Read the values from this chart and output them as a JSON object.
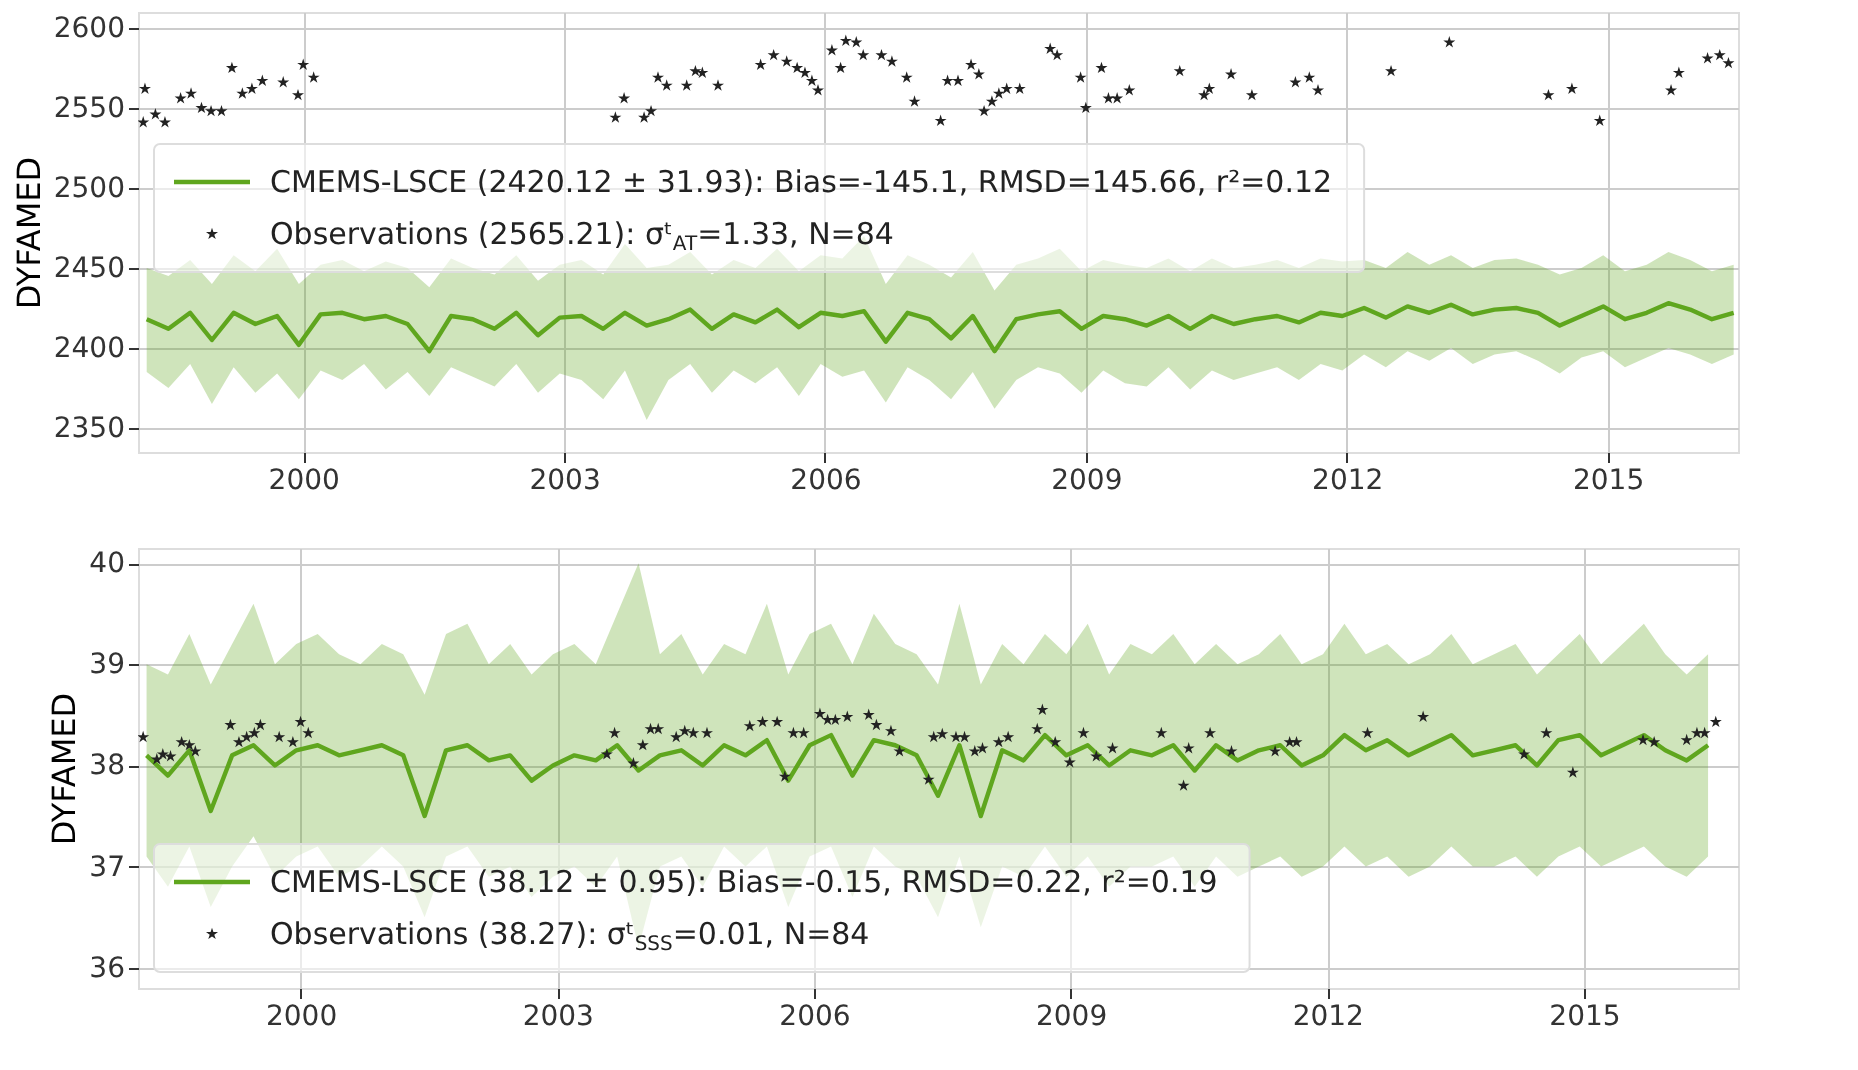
{
  "chart_data": [
    {
      "type": "line",
      "ylabel": "DYFAMED",
      "xlim": [
        1998.1,
        2016.5
      ],
      "xticks": [
        2000,
        2003,
        2006,
        2009,
        2012,
        2015
      ],
      "ylim": [
        2335,
        2610
      ],
      "yticks": [
        2350,
        2400,
        2450,
        2500,
        2550,
        2600
      ],
      "grid": true,
      "legend": "left",
      "series": [
        {
          "name": "CMEMS-LSCE (2420.12 ± 31.93): Bias=-145.1, RMSD=145.66, r²=0.12",
          "type": "line",
          "color": "#5fa61e",
          "line_style": "solid",
          "x": [
            1998.2,
            1998.45,
            1998.7,
            1998.95,
            1999.2,
            1999.45,
            1999.7,
            1999.95,
            2000.2,
            2000.45,
            2000.7,
            2000.95,
            2001.2,
            2001.45,
            2001.7,
            2001.95,
            2002.2,
            2002.45,
            2002.7,
            2002.95,
            2003.2,
            2003.45,
            2003.7,
            2003.95,
            2004.2,
            2004.45,
            2004.7,
            2004.95,
            2005.2,
            2005.45,
            2005.7,
            2005.95,
            2006.2,
            2006.45,
            2006.7,
            2006.95,
            2007.2,
            2007.45,
            2007.7,
            2007.95,
            2008.2,
            2008.45,
            2008.7,
            2008.95,
            2009.2,
            2009.45,
            2009.7,
            2009.95,
            2010.2,
            2010.45,
            2010.7,
            2010.95,
            2011.2,
            2011.45,
            2011.7,
            2011.95,
            2012.2,
            2012.45,
            2012.7,
            2012.95,
            2013.2,
            2013.45,
            2013.7,
            2013.95,
            2014.2,
            2014.45,
            2014.7,
            2014.95,
            2015.2,
            2015.45,
            2015.7,
            2015.95,
            2016.2,
            2016.45
          ],
          "values": [
            2418,
            2412,
            2422,
            2405,
            2422,
            2415,
            2420,
            2402,
            2421,
            2422,
            2418,
            2420,
            2415,
            2398,
            2420,
            2418,
            2412,
            2422,
            2408,
            2419,
            2420,
            2412,
            2422,
            2414,
            2418,
            2424,
            2412,
            2421,
            2416,
            2424,
            2413,
            2422,
            2420,
            2423,
            2404,
            2422,
            2418,
            2406,
            2420,
            2398,
            2418,
            2421,
            2423,
            2412,
            2420,
            2418,
            2414,
            2420,
            2412,
            2420,
            2415,
            2418,
            2420,
            2416,
            2422,
            2420,
            2425,
            2419,
            2426,
            2422,
            2427,
            2421,
            2424,
            2425,
            2422,
            2414,
            2420,
            2426,
            2418,
            2422,
            2428,
            2424,
            2418,
            2422
          ],
          "lower": [
            2385,
            2375,
            2390,
            2365,
            2388,
            2372,
            2384,
            2368,
            2386,
            2380,
            2390,
            2374,
            2385,
            2370,
            2388,
            2382,
            2376,
            2390,
            2372,
            2384,
            2380,
            2368,
            2386,
            2355,
            2380,
            2390,
            2372,
            2386,
            2378,
            2388,
            2370,
            2390,
            2382,
            2386,
            2366,
            2388,
            2380,
            2368,
            2385,
            2362,
            2380,
            2388,
            2384,
            2372,
            2386,
            2378,
            2376,
            2388,
            2374,
            2386,
            2380,
            2384,
            2388,
            2380,
            2390,
            2386,
            2396,
            2388,
            2398,
            2392,
            2400,
            2390,
            2396,
            2398,
            2392,
            2384,
            2394,
            2398,
            2388,
            2394,
            2400,
            2396,
            2390,
            2396
          ],
          "upper": [
            2450,
            2445,
            2455,
            2440,
            2458,
            2448,
            2462,
            2440,
            2452,
            2455,
            2448,
            2454,
            2450,
            2438,
            2456,
            2450,
            2446,
            2458,
            2442,
            2452,
            2455,
            2446,
            2465,
            2450,
            2452,
            2460,
            2446,
            2455,
            2450,
            2462,
            2448,
            2458,
            2456,
            2470,
            2440,
            2458,
            2452,
            2444,
            2460,
            2436,
            2452,
            2456,
            2462,
            2448,
            2455,
            2452,
            2450,
            2456,
            2448,
            2456,
            2450,
            2452,
            2455,
            2450,
            2456,
            2454,
            2455,
            2450,
            2460,
            2452,
            2458,
            2450,
            2455,
            2456,
            2452,
            2446,
            2450,
            2458,
            2448,
            2452,
            2460,
            2455,
            2448,
            2452
          ]
        },
        {
          "name": "Observations (2565.21): σᵗ$_{AT}$=1.33, N=84",
          "type": "scatter",
          "color": "#222222",
          "marker": "star",
          "x": [
            1998.18,
            1998.16,
            1998.3,
            1998.41,
            1998.59,
            1998.71,
            1998.83,
            1998.94,
            1999.06,
            1999.18,
            1999.3,
            1999.41,
            1999.53,
            1999.77,
            1999.94,
            2000.0,
            2000.12,
            2003.59,
            2003.69,
            2003.92,
            2004.0,
            2004.08,
            2004.18,
            2004.41,
            2004.51,
            2004.59,
            2004.77,
            2005.26,
            2005.41,
            2005.56,
            2005.68,
            2005.77,
            2005.85,
            2005.92,
            2006.08,
            2006.18,
            2006.24,
            2006.36,
            2006.44,
            2006.65,
            2006.77,
            2006.94,
            2007.03,
            2007.33,
            2007.41,
            2007.53,
            2007.68,
            2007.77,
            2007.83,
            2007.92,
            2008.0,
            2008.09,
            2008.24,
            2008.59,
            2008.67,
            2008.94,
            2009.0,
            2009.18,
            2009.26,
            2009.36,
            2009.5,
            2010.08,
            2010.36,
            2010.42,
            2010.67,
            2010.91,
            2011.41,
            2011.57,
            2011.67,
            2012.51,
            2013.18,
            2014.32,
            2014.59,
            2014.91,
            2015.73,
            2015.82,
            2016.15,
            2016.29,
            2016.39
          ],
          "values": [
            2562,
            2541,
            2546,
            2541,
            2556,
            2559,
            2550,
            2548,
            2548,
            2575,
            2559,
            2562,
            2567,
            2566,
            2558,
            2577,
            2569,
            2544,
            2556,
            2544,
            2548,
            2569,
            2564,
            2564,
            2573,
            2572,
            2564,
            2577,
            2583,
            2579,
            2575,
            2572,
            2567,
            2561,
            2586,
            2575,
            2592,
            2591,
            2583,
            2583,
            2579,
            2569,
            2554,
            2542,
            2567,
            2567,
            2577,
            2571,
            2548,
            2554,
            2559,
            2562,
            2562,
            2587,
            2583,
            2569,
            2550,
            2575,
            2556,
            2556,
            2561,
            2573,
            2558,
            2562,
            2571,
            2558,
            2566,
            2569,
            2561,
            2573,
            2591,
            2558,
            2562,
            2542,
            2561,
            2572,
            2581,
            2583,
            2578
          ]
        }
      ]
    },
    {
      "type": "line",
      "ylabel": "DYFAMED",
      "xlim": [
        1998.1,
        2016.8
      ],
      "xticks": [
        2000,
        2003,
        2006,
        2009,
        2012,
        2015
      ],
      "ylim": [
        35.8,
        40.15
      ],
      "yticks": [
        36,
        37,
        38,
        39,
        40
      ],
      "grid": true,
      "legend": "bottom left",
      "series": [
        {
          "name": "CMEMS-LSCE (38.12 ± 0.95): Bias=-0.15, RMSD=0.22, r²=0.19",
          "type": "line",
          "color": "#5fa61e",
          "line_style": "solid",
          "x": [
            1998.2,
            1998.45,
            1998.7,
            1998.95,
            1999.2,
            1999.45,
            1999.7,
            1999.95,
            2000.2,
            2000.45,
            2000.7,
            2000.95,
            2001.2,
            2001.45,
            2001.7,
            2001.95,
            2002.2,
            2002.45,
            2002.7,
            2002.95,
            2003.2,
            2003.45,
            2003.7,
            2003.95,
            2004.2,
            2004.45,
            2004.7,
            2004.95,
            2005.2,
            2005.45,
            2005.7,
            2005.95,
            2006.2,
            2006.45,
            2006.7,
            2006.95,
            2007.2,
            2007.45,
            2007.7,
            2007.95,
            2008.2,
            2008.45,
            2008.7,
            2008.95,
            2009.2,
            2009.45,
            2009.7,
            2009.95,
            2010.2,
            2010.45,
            2010.7,
            2010.95,
            2011.2,
            2011.45,
            2011.7,
            2011.95,
            2012.2,
            2012.45,
            2012.7,
            2012.95,
            2013.2,
            2013.45,
            2013.7,
            2013.95,
            2014.2,
            2014.45,
            2014.7,
            2014.95,
            2015.2,
            2015.45,
            2015.7,
            2015.95,
            2016.2,
            2016.45
          ],
          "values": [
            38.1,
            37.9,
            38.15,
            37.55,
            38.1,
            38.2,
            38.0,
            38.15,
            38.2,
            38.1,
            38.15,
            38.2,
            38.1,
            37.5,
            38.15,
            38.2,
            38.05,
            38.1,
            37.85,
            38.0,
            38.1,
            38.05,
            38.2,
            37.95,
            38.1,
            38.15,
            38.0,
            38.2,
            38.1,
            38.25,
            37.85,
            38.2,
            38.3,
            37.9,
            38.25,
            38.2,
            38.1,
            37.7,
            38.2,
            37.5,
            38.15,
            38.05,
            38.3,
            38.1,
            38.2,
            38.0,
            38.15,
            38.1,
            38.2,
            37.95,
            38.2,
            38.05,
            38.15,
            38.2,
            38.0,
            38.1,
            38.3,
            38.15,
            38.25,
            38.1,
            38.2,
            38.3,
            38.1,
            38.15,
            38.2,
            38.0,
            38.25,
            38.3,
            38.1,
            38.2,
            38.3,
            38.15,
            38.05,
            38.2
          ],
          "lower": [
            37.1,
            36.8,
            37.2,
            36.6,
            37.0,
            37.3,
            36.9,
            37.1,
            37.2,
            36.9,
            37.0,
            37.2,
            37.0,
            36.5,
            37.1,
            37.2,
            36.9,
            37.0,
            36.7,
            36.9,
            37.0,
            36.8,
            37.1,
            36.2,
            37.0,
            37.1,
            36.8,
            37.2,
            37.0,
            37.2,
            36.6,
            37.1,
            37.2,
            36.7,
            37.2,
            37.0,
            36.9,
            36.5,
            37.1,
            36.4,
            37.0,
            36.9,
            37.2,
            36.9,
            37.1,
            36.8,
            37.0,
            37.0,
            37.1,
            36.8,
            37.1,
            36.9,
            37.0,
            37.1,
            36.9,
            37.0,
            37.2,
            37.0,
            37.1,
            36.9,
            37.0,
            37.2,
            37.0,
            37.0,
            37.1,
            36.9,
            37.1,
            37.2,
            37.0,
            37.1,
            37.2,
            37.0,
            36.9,
            37.1
          ],
          "upper": [
            39.0,
            38.9,
            39.3,
            38.8,
            39.2,
            39.6,
            39.0,
            39.2,
            39.3,
            39.1,
            39.0,
            39.2,
            39.1,
            38.7,
            39.3,
            39.4,
            39.0,
            39.2,
            38.9,
            39.1,
            39.2,
            39.0,
            39.5,
            40.0,
            39.1,
            39.3,
            38.9,
            39.2,
            39.1,
            39.6,
            38.9,
            39.3,
            39.4,
            39.0,
            39.5,
            39.2,
            39.1,
            38.8,
            39.6,
            38.8,
            39.2,
            39.0,
            39.3,
            39.1,
            39.4,
            38.9,
            39.2,
            39.1,
            39.3,
            39.0,
            39.2,
            39.0,
            39.1,
            39.3,
            39.0,
            39.1,
            39.4,
            39.1,
            39.2,
            39.0,
            39.1,
            39.3,
            39.0,
            39.1,
            39.2,
            38.9,
            39.1,
            39.3,
            39.0,
            39.2,
            39.4,
            39.1,
            38.9,
            39.1
          ]
        },
        {
          "name": "Observations (38.27): σᵗ$_{SSS}$=0.01, N=84",
          "type": "scatter",
          "color": "#222222",
          "marker": "star",
          "x": [
            1998.16,
            1998.32,
            1998.39,
            1998.48,
            1998.61,
            1998.7,
            1998.77,
            1999.18,
            1999.28,
            1999.37,
            1999.46,
            1999.53,
            1999.75,
            1999.91,
            2000.0,
            2000.09,
            2003.58,
            2003.67,
            2003.89,
            2004.0,
            2004.09,
            2004.18,
            2004.39,
            2004.49,
            2004.59,
            2004.75,
            2005.25,
            2005.4,
            2005.57,
            2005.66,
            2005.76,
            2005.88,
            2006.07,
            2006.16,
            2006.25,
            2006.39,
            2006.64,
            2006.73,
            2006.9,
            2007.0,
            2007.34,
            2007.4,
            2007.5,
            2007.66,
            2007.76,
            2007.88,
            2007.97,
            2008.16,
            2008.27,
            2008.61,
            2008.67,
            2008.82,
            2008.99,
            2009.15,
            2009.3,
            2009.49,
            2010.06,
            2010.32,
            2010.38,
            2010.63,
            2010.88,
            2011.39,
            2011.56,
            2011.64,
            2012.47,
            2013.12,
            2014.3,
            2014.56,
            2014.87,
            2015.69,
            2015.82,
            2016.2,
            2016.32,
            2016.41,
            2016.54
          ],
          "values": [
            38.28,
            38.06,
            38.11,
            38.09,
            38.23,
            38.2,
            38.14,
            38.4,
            38.23,
            38.28,
            38.32,
            38.4,
            38.28,
            38.23,
            38.43,
            38.32,
            38.11,
            38.32,
            38.02,
            38.2,
            38.36,
            38.36,
            38.28,
            38.34,
            38.32,
            38.32,
            38.39,
            38.43,
            38.43,
            37.89,
            38.32,
            38.32,
            38.51,
            38.45,
            38.45,
            38.48,
            38.5,
            38.4,
            38.34,
            38.14,
            37.86,
            38.28,
            38.31,
            38.28,
            38.28,
            38.14,
            38.17,
            38.23,
            38.28,
            38.36,
            38.55,
            38.23,
            38.03,
            38.32,
            38.09,
            38.17,
            38.32,
            37.8,
            38.17,
            38.32,
            38.14,
            38.14,
            38.23,
            38.23,
            38.32,
            38.48,
            38.11,
            38.32,
            37.93,
            38.25,
            38.23,
            38.25,
            38.32,
            38.32,
            38.43
          ]
        }
      ]
    }
  ]
}
